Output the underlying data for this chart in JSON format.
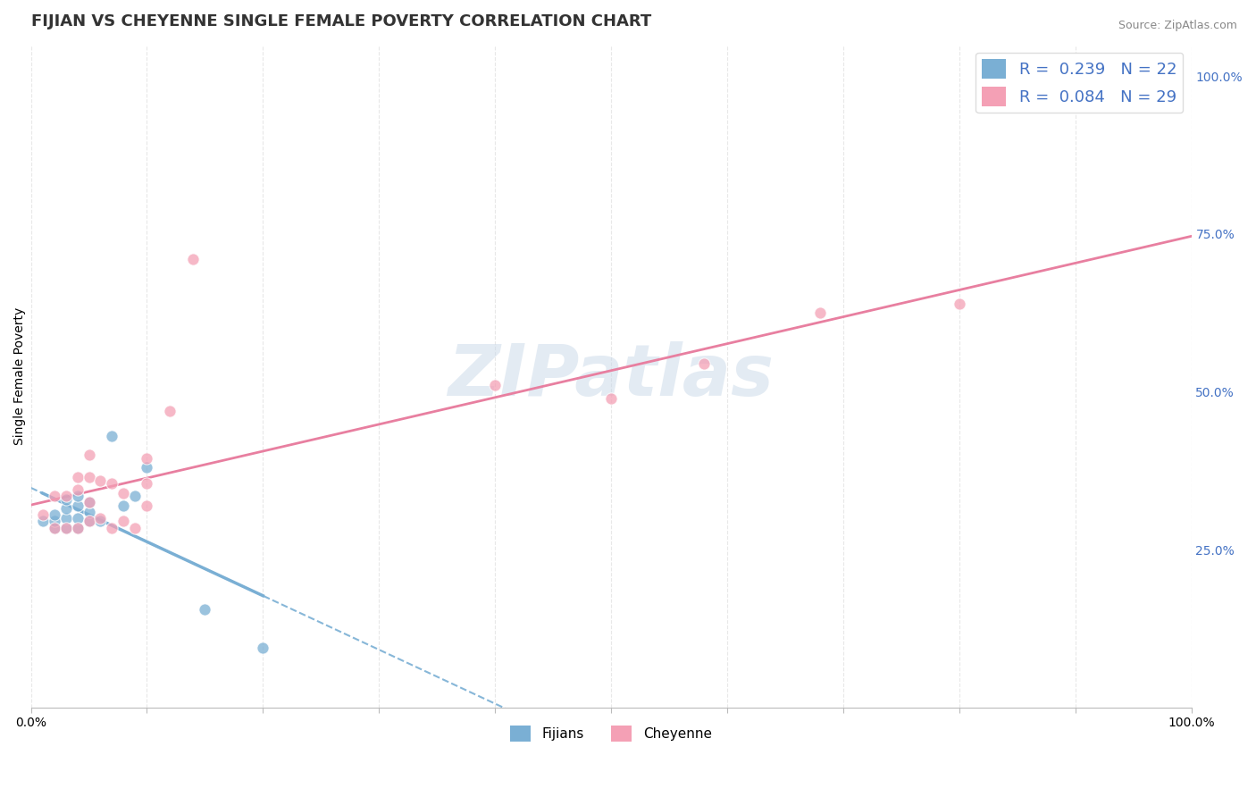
{
  "title": "FIJIAN VS CHEYENNE SINGLE FEMALE POVERTY CORRELATION CHART",
  "source": "Source: ZipAtlas.com",
  "xlabel": "",
  "ylabel": "Single Female Poverty",
  "xlim": [
    0.0,
    1.0
  ],
  "ylim": [
    0.0,
    1.05
  ],
  "xticks": [
    0.0,
    0.1,
    0.2,
    0.3,
    0.4,
    0.5,
    0.6,
    0.7,
    0.8,
    0.9,
    1.0
  ],
  "xticklabels": [
    "0.0%",
    "",
    "",
    "",
    "",
    "",
    "",
    "",
    "",
    "",
    "100.0%"
  ],
  "yticks": [
    0.25,
    0.5,
    0.75,
    1.0
  ],
  "yticklabels": [
    "25.0%",
    "50.0%",
    "75.0%",
    "100.0%"
  ],
  "fijian_color": "#7aafd4",
  "cheyenne_color": "#f4a0b5",
  "fijian_line_color": "#7aafd4",
  "cheyenne_line_color": "#e87fa0",
  "fijian_R": 0.239,
  "fijian_N": 22,
  "cheyenne_R": 0.084,
  "cheyenne_N": 29,
  "watermark": "ZIPatlas",
  "fijian_x": [
    0.01,
    0.02,
    0.02,
    0.02,
    0.03,
    0.03,
    0.03,
    0.03,
    0.04,
    0.04,
    0.04,
    0.04,
    0.05,
    0.05,
    0.05,
    0.06,
    0.07,
    0.08,
    0.09,
    0.1,
    0.15,
    0.2
  ],
  "fijian_y": [
    0.295,
    0.285,
    0.295,
    0.305,
    0.285,
    0.3,
    0.315,
    0.33,
    0.285,
    0.3,
    0.32,
    0.335,
    0.295,
    0.31,
    0.325,
    0.295,
    0.43,
    0.32,
    0.335,
    0.38,
    0.155,
    0.095
  ],
  "cheyenne_x": [
    0.01,
    0.02,
    0.02,
    0.03,
    0.03,
    0.04,
    0.04,
    0.04,
    0.05,
    0.05,
    0.05,
    0.05,
    0.06,
    0.06,
    0.07,
    0.07,
    0.08,
    0.08,
    0.09,
    0.1,
    0.1,
    0.1,
    0.12,
    0.14,
    0.4,
    0.5,
    0.58,
    0.68,
    0.8
  ],
  "cheyenne_y": [
    0.305,
    0.285,
    0.335,
    0.285,
    0.335,
    0.285,
    0.345,
    0.365,
    0.295,
    0.325,
    0.365,
    0.4,
    0.3,
    0.36,
    0.285,
    0.355,
    0.295,
    0.34,
    0.285,
    0.32,
    0.355,
    0.395,
    0.47,
    0.71,
    0.51,
    0.49,
    0.545,
    0.625,
    0.64
  ],
  "background_color": "#ffffff",
  "grid_color": "#e8e8e8",
  "title_fontsize": 13,
  "axis_fontsize": 10,
  "tick_color": "#4472c4",
  "legend_fontsize": 13
}
